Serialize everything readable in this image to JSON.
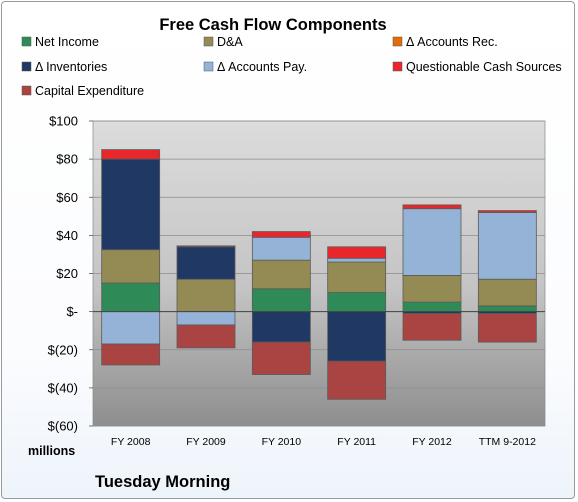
{
  "chart_data": {
    "type": "bar",
    "stacked": true,
    "title": "Free Cash Flow Components",
    "units_label": "millions",
    "footer": "Tuesday Morning",
    "ylim": [
      -60,
      100
    ],
    "yticks": [
      100,
      80,
      60,
      40,
      20,
      0,
      -20,
      -40,
      -60
    ],
    "ytick_labels": [
      "$100",
      "$80",
      "$60",
      "$40",
      "$20",
      "$-",
      "$(20)",
      "$(40)",
      "$(60)"
    ],
    "grid": true,
    "legend_position": "top",
    "categories": [
      "FY 2008",
      "FY 2009",
      "FY 2010",
      "FY 2011",
      "FY 2012",
      "TTM 9-2012"
    ],
    "series": [
      {
        "name": "Net Income",
        "color": "#2e8b57",
        "values": [
          15,
          0,
          12,
          10,
          5,
          3
        ]
      },
      {
        "name": "D&A",
        "color": "#948a54",
        "values": [
          17.5,
          17,
          15,
          16,
          14,
          14
        ]
      },
      {
        "name": "Δ Accounts Rec.",
        "color": "#e46c0a",
        "values": [
          0,
          0,
          0,
          0,
          0,
          0
        ]
      },
      {
        "name": "Δ Inventories",
        "color": "#1f3864",
        "values": [
          47.5,
          17,
          -16,
          -26,
          -1,
          -1
        ]
      },
      {
        "name": "Δ Accounts Pay.",
        "color": "#95b3d7",
        "values": [
          -17,
          -7,
          12,
          2,
          35,
          35
        ]
      },
      {
        "name": "Questionable Cash Sources",
        "color": "#e8272c",
        "values": [
          5,
          0.5,
          3,
          6,
          2,
          1
        ]
      },
      {
        "name": "Capital Expenditure",
        "color": "#a94442",
        "values": [
          -11,
          -12,
          -17,
          -20,
          -14,
          -15
        ]
      }
    ]
  }
}
